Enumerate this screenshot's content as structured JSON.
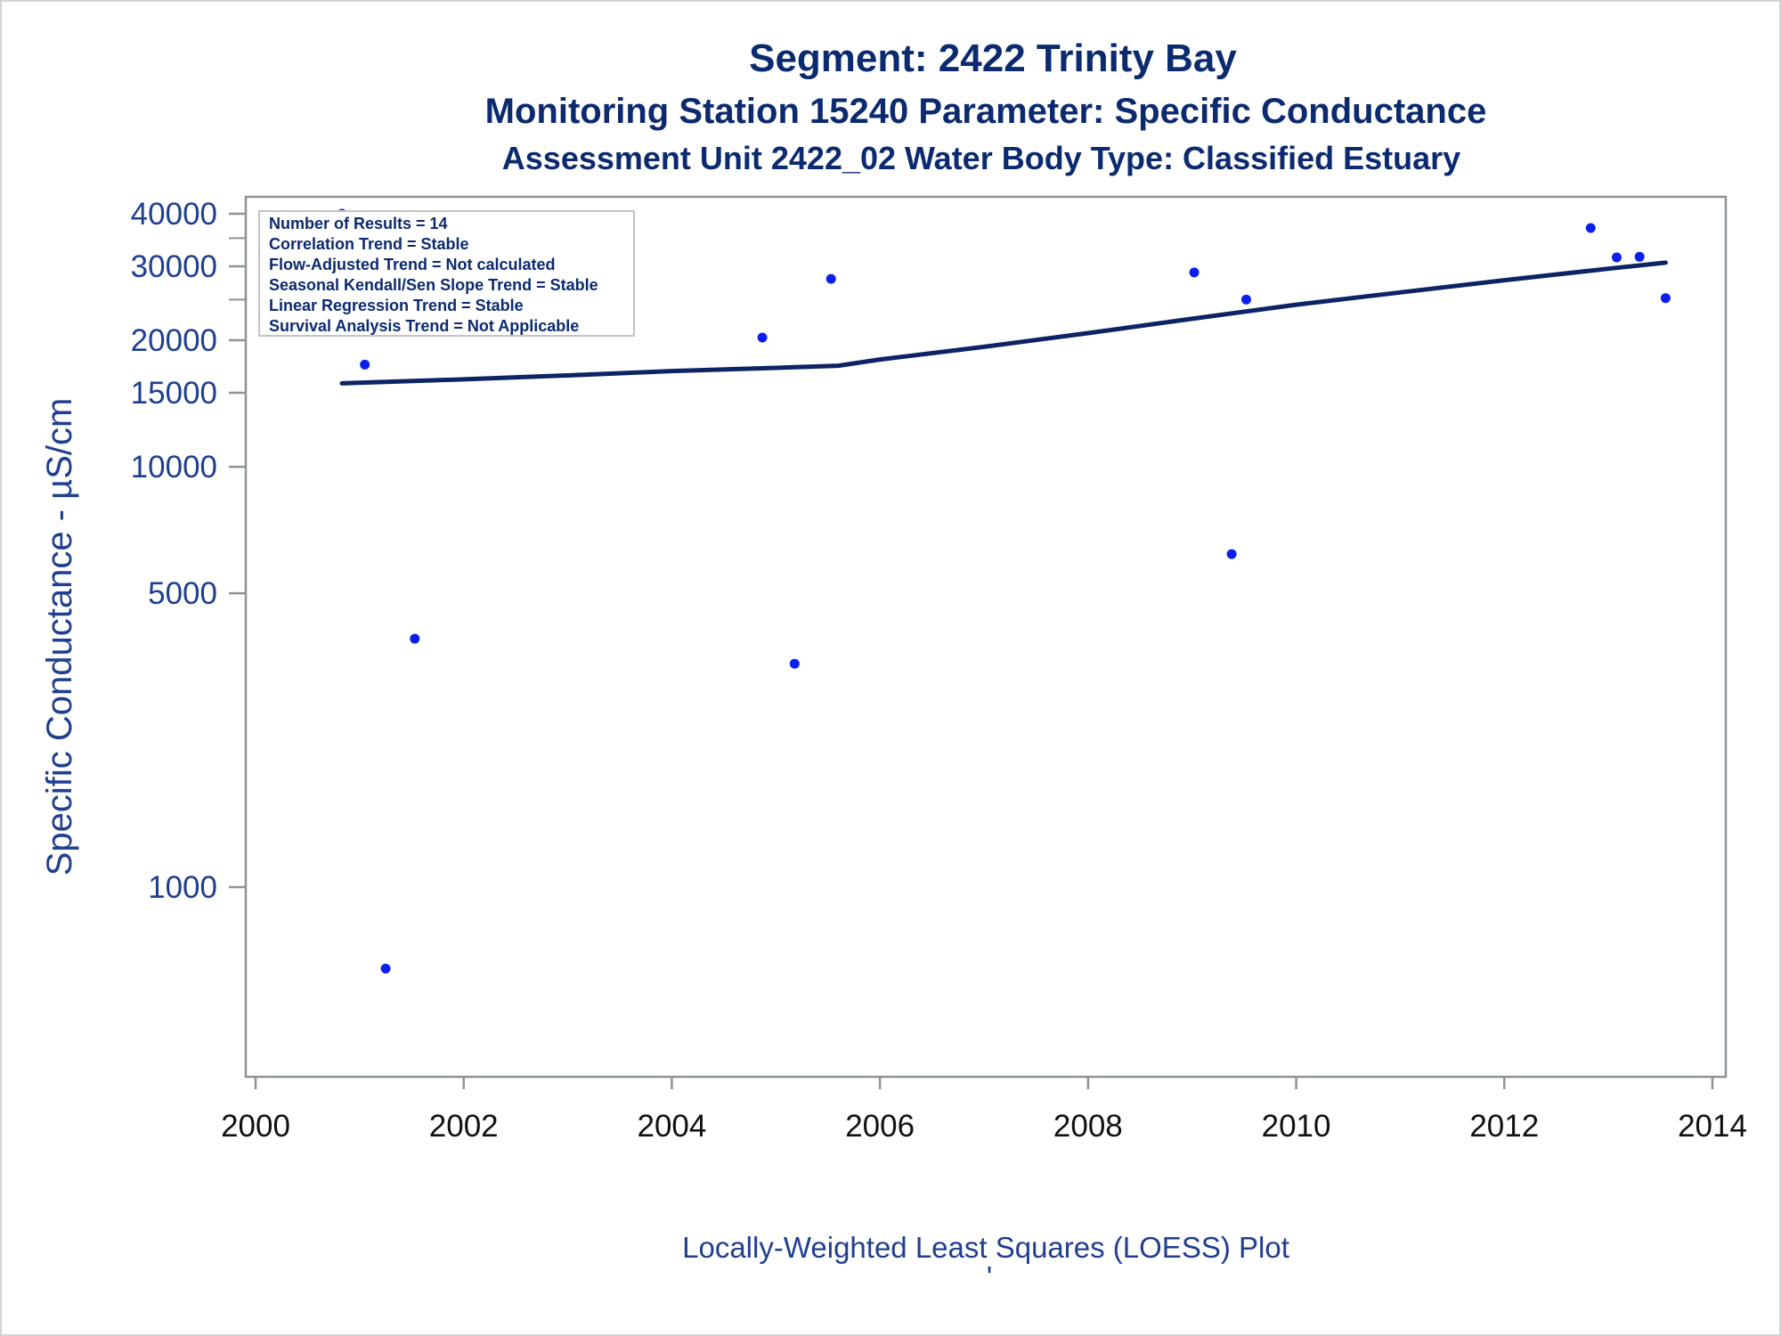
{
  "chart_data": {
    "type": "scatter",
    "title": "Segment: 2422  Trinity Bay",
    "subtitle": "Monitoring Station 15240 Parameter: Specific Conductance",
    "subtitle2": "Assessment Unit 2422_02   Water Body Type: Classified Estuary",
    "ylabel": "Specific Conductance -  µS/cm",
    "xlabel": "Locally-Weighted Least Squares (LOESS) Plot",
    "footnote": "'",
    "y_scale": "log",
    "xlim": [
      2000,
      2014
    ],
    "ylim": [
      640,
      42000
    ],
    "x_ticks": [
      "2000",
      "2002",
      "2004",
      "2006",
      "2008",
      "2010",
      "2012",
      "2014"
    ],
    "y_ticks": [
      "40000",
      "30000",
      "20000",
      "15000",
      "10000",
      "5000",
      "1000"
    ],
    "stats_box": [
      "Number of Results = 14",
      "Correlation Trend = Stable",
      "Flow-Adjusted Trend = Not calculated",
      "Seasonal Kendall/Sen Slope Trend = Stable",
      "Linear Regression Trend = Stable",
      "Survival Analysis Trend = Not Applicable"
    ],
    "grid": false,
    "legend": "none",
    "series": [
      {
        "type": "scatter",
        "color": "#0a1ff0",
        "points": [
          [
            2000.83,
            40000
          ],
          [
            2001.05,
            17500
          ],
          [
            2001.25,
            640
          ],
          [
            2001.53,
            3900
          ],
          [
            2004.87,
            20300
          ],
          [
            2005.18,
            3400
          ],
          [
            2005.53,
            28000
          ],
          [
            2009.02,
            29000
          ],
          [
            2009.38,
            6200
          ],
          [
            2009.52,
            25000
          ],
          [
            2012.83,
            37000
          ],
          [
            2013.08,
            31500
          ],
          [
            2013.3,
            31600
          ],
          [
            2013.55,
            25200
          ]
        ]
      },
      {
        "type": "line",
        "color": "#0c2466",
        "points": [
          [
            2000.83,
            15800
          ],
          [
            2002.0,
            16150
          ],
          [
            2003.0,
            16500
          ],
          [
            2004.0,
            16900
          ],
          [
            2005.0,
            17200
          ],
          [
            2005.6,
            17400
          ],
          [
            2006.0,
            18000
          ],
          [
            2007.0,
            19300
          ],
          [
            2008.0,
            20800
          ],
          [
            2009.0,
            22500
          ],
          [
            2010.0,
            24300
          ],
          [
            2011.0,
            26000
          ],
          [
            2012.0,
            27800
          ],
          [
            2013.0,
            29600
          ],
          [
            2013.55,
            30600
          ]
        ]
      }
    ]
  },
  "colors": {
    "title": "#0b2a6f",
    "label": "#1f3f8f",
    "tick_y": "#1f3f8f",
    "tick_x": "#111111",
    "axis": "#8c9399",
    "point": "#0a1ff0",
    "fit_line": "#0c2466"
  }
}
